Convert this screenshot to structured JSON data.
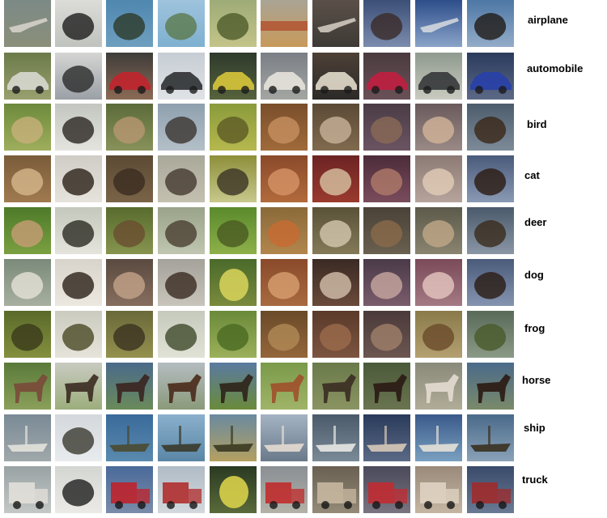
{
  "labels": [
    "airplane",
    "automobile",
    "bird",
    "cat",
    "deer",
    "dog",
    "frog",
    "horse",
    "ship",
    "truck"
  ],
  "images": [
    [
      {
        "bg": [
          "#7c8a86",
          "#8b8f7a"
        ],
        "fg": "#d9d5cc",
        "shape": "plane"
      },
      {
        "bg": [
          "#dcdcd8",
          "#bfc3bd"
        ],
        "fg": "#1d1d1d",
        "shape": "blob"
      },
      {
        "bg": [
          "#4f87b0",
          "#6f9fbf"
        ],
        "fg": "#2c3a28",
        "shape": "blob"
      },
      {
        "bg": [
          "#9ec3dd",
          "#7fb0d0"
        ],
        "fg": "#5b7a4c",
        "shape": "blob"
      },
      {
        "bg": [
          "#9eab77",
          "#c3c489"
        ],
        "fg": "#4e5b2a",
        "shape": "blob"
      },
      {
        "bg": [
          "#a9a495",
          "#c89a5b"
        ],
        "fg": "#b24a2a",
        "shape": "stripe"
      },
      {
        "bg": [
          "#5a5049",
          "#3e3a35"
        ],
        "fg": "#d7d0c5",
        "shape": "plane"
      },
      {
        "bg": [
          "#3c4f77",
          "#7b8cad"
        ],
        "fg": "#3a2a28",
        "shape": "blob"
      },
      {
        "bg": [
          "#2d4e8a",
          "#8aa3c9"
        ],
        "fg": "#d8dce0",
        "shape": "plane"
      },
      {
        "bg": [
          "#4d77a5",
          "#93acc8"
        ],
        "fg": "#1f1a17",
        "shape": "blob"
      }
    ],
    [
      {
        "bg": [
          "#6b7a4a",
          "#9aa06f"
        ],
        "fg": "#d8d8d0",
        "shape": "car"
      },
      {
        "bg": [
          "#d5d5d3",
          "#9aa0a6"
        ],
        "fg": "#2a2a2a",
        "shape": "blob"
      },
      {
        "bg": [
          "#3f3d3a",
          "#8b6a55"
        ],
        "fg": "#c1232c",
        "shape": "car"
      },
      {
        "bg": [
          "#c6cdd4",
          "#e0e3e6"
        ],
        "fg": "#2e3033",
        "shape": "car"
      },
      {
        "bg": [
          "#2e3a2c",
          "#57633c"
        ],
        "fg": "#d7c53a",
        "shape": "car"
      },
      {
        "bg": [
          "#7a7f86",
          "#a4a6a2"
        ],
        "fg": "#e5e3dc",
        "shape": "car"
      },
      {
        "bg": [
          "#4d4036",
          "#2c2a28"
        ],
        "fg": "#e2dccb",
        "shape": "car"
      },
      {
        "bg": [
          "#4a3b3f",
          "#6a5158"
        ],
        "fg": "#c01e3f",
        "shape": "car"
      },
      {
        "bg": [
          "#8f9a8e",
          "#c9cbc0"
        ],
        "fg": "#35373a",
        "shape": "car"
      },
      {
        "bg": [
          "#2b3b5c",
          "#5c6986"
        ],
        "fg": "#2840a8",
        "shape": "car"
      }
    ],
    [
      {
        "bg": [
          "#6d8a3c",
          "#9eae5c"
        ],
        "fg": "#c8b07a",
        "shape": "blob"
      },
      {
        "bg": [
          "#c3c6c0",
          "#e4e4de"
        ],
        "fg": "#2a2621",
        "shape": "blob"
      },
      {
        "bg": [
          "#5b6b3a",
          "#88925a"
        ],
        "fg": "#b89672",
        "shape": "blob"
      },
      {
        "bg": [
          "#8ea0ae",
          "#b4c0c8"
        ],
        "fg": "#3b3431",
        "shape": "blob"
      },
      {
        "bg": [
          "#8a9b3b",
          "#b6b84e"
        ],
        "fg": "#5d5a26",
        "shape": "blob"
      },
      {
        "bg": [
          "#7a4f2c",
          "#a06a3a"
        ],
        "fg": "#c79060",
        "shape": "blob"
      },
      {
        "bg": [
          "#5b4a36",
          "#806a4e"
        ],
        "fg": "#c8b39a",
        "shape": "blob"
      },
      {
        "bg": [
          "#4a3c45",
          "#6b5462"
        ],
        "fg": "#8a6a56",
        "shape": "blob"
      },
      {
        "bg": [
          "#6b5a5c",
          "#9a8a86"
        ],
        "fg": "#d2b49a",
        "shape": "blob"
      },
      {
        "bg": [
          "#4d5c6c",
          "#7d8b99"
        ],
        "fg": "#3a2718",
        "shape": "blob"
      }
    ],
    [
      {
        "bg": [
          "#7a5c3a",
          "#a07a50"
        ],
        "fg": "#d6b88c",
        "shape": "blob"
      },
      {
        "bg": [
          "#d0cdc6",
          "#e6e3dc"
        ],
        "fg": "#2a2018",
        "shape": "blob"
      },
      {
        "bg": [
          "#5c4a34",
          "#7a6448"
        ],
        "fg": "#3b2c20",
        "shape": "blob"
      },
      {
        "bg": [
          "#a9a99a",
          "#c4c0b0"
        ],
        "fg": "#453a30",
        "shape": "blob"
      },
      {
        "bg": [
          "#8d8f3a",
          "#c8c88c"
        ],
        "fg": "#3a3324",
        "shape": "blob"
      },
      {
        "bg": [
          "#8a4a2a",
          "#b26a3c"
        ],
        "fg": "#d69466",
        "shape": "blob"
      },
      {
        "bg": [
          "#6c2424",
          "#9a3a2e"
        ],
        "fg": "#d8c4a4",
        "shape": "blob"
      },
      {
        "bg": [
          "#4c2c3a",
          "#7a4c5c"
        ],
        "fg": "#b07a6a",
        "shape": "blob"
      },
      {
        "bg": [
          "#8c7a74",
          "#b6a49c"
        ],
        "fg": "#e2cdb8",
        "shape": "blob"
      },
      {
        "bg": [
          "#4a5a7a",
          "#8a9ab4"
        ],
        "fg": "#2a1a10",
        "shape": "blob"
      }
    ],
    [
      {
        "bg": [
          "#4e7a2a",
          "#7aa040"
        ],
        "fg": "#c89c76",
        "shape": "blob"
      },
      {
        "bg": [
          "#c4c8bc",
          "#e4e4dc"
        ],
        "fg": "#2a2a22",
        "shape": "blob"
      },
      {
        "bg": [
          "#586c2e",
          "#86944e"
        ],
        "fg": "#6a4e30",
        "shape": "blob"
      },
      {
        "bg": [
          "#9aa48a",
          "#c0c6b0"
        ],
        "fg": "#4a3e32",
        "shape": "blob"
      },
      {
        "bg": [
          "#5a8a2c",
          "#8eb04a"
        ],
        "fg": "#4a5a22",
        "shape": "blob"
      },
      {
        "bg": [
          "#8a6a3a",
          "#b2864c"
        ],
        "fg": "#c86a32",
        "shape": "blob"
      },
      {
        "bg": [
          "#5a5238",
          "#847a58"
        ],
        "fg": "#d4c8b0",
        "shape": "blob"
      },
      {
        "bg": [
          "#4a4238",
          "#6a6050"
        ],
        "fg": "#8a6a4a",
        "shape": "blob"
      },
      {
        "bg": [
          "#5c5a4a",
          "#8a8470"
        ],
        "fg": "#c0a888",
        "shape": "blob"
      },
      {
        "bg": [
          "#4a5a6c",
          "#8a96a4"
        ],
        "fg": "#3a2a1c",
        "shape": "blob"
      }
    ],
    [
      {
        "bg": [
          "#7a8a7a",
          "#a8b0a0"
        ],
        "fg": "#e6e2d8",
        "shape": "blob"
      },
      {
        "bg": [
          "#d8d4cc",
          "#ece8e0"
        ],
        "fg": "#2a2018",
        "shape": "blob"
      },
      {
        "bg": [
          "#5a4a40",
          "#866e5e"
        ],
        "fg": "#c4a48a",
        "shape": "blob"
      },
      {
        "bg": [
          "#a4a29a",
          "#c8c4bc"
        ],
        "fg": "#3a2a20",
        "shape": "blob"
      },
      {
        "bg": [
          "#4a6a2a",
          "#7a8a3c"
        ],
        "fg": "#d4d05a",
        "shape": "disc"
      },
      {
        "bg": [
          "#8a4a2a",
          "#a86a40"
        ],
        "fg": "#d8a070",
        "shape": "blob"
      },
      {
        "bg": [
          "#3a2a24",
          "#6a4a3a"
        ],
        "fg": "#d4c0ac",
        "shape": "blob"
      },
      {
        "bg": [
          "#4a3a48",
          "#7a5c6c"
        ],
        "fg": "#c8a8a0",
        "shape": "blob"
      },
      {
        "bg": [
          "#7a4a58",
          "#a47a84"
        ],
        "fg": "#e6c8c0",
        "shape": "blob"
      },
      {
        "bg": [
          "#4a5a7a",
          "#8494b0"
        ],
        "fg": "#2a1c14",
        "shape": "blob"
      }
    ],
    [
      {
        "bg": [
          "#5a6a2a",
          "#84903e"
        ],
        "fg": "#3a3a1a",
        "shape": "blob"
      },
      {
        "bg": [
          "#cccbc0",
          "#e6e4da"
        ],
        "fg": "#4a4a26",
        "shape": "blob"
      },
      {
        "bg": [
          "#6a6a3a",
          "#94904e"
        ],
        "fg": "#3a3220",
        "shape": "blob"
      },
      {
        "bg": [
          "#c6cabc",
          "#e0e2d6"
        ],
        "fg": "#3e4a2a",
        "shape": "blob"
      },
      {
        "bg": [
          "#6a8a3a",
          "#9cb05a"
        ],
        "fg": "#4a6a22",
        "shape": "blob"
      },
      {
        "bg": [
          "#6a4a2a",
          "#94663a"
        ],
        "fg": "#b08a56",
        "shape": "blob"
      },
      {
        "bg": [
          "#5a3a2a",
          "#7c5440"
        ],
        "fg": "#9c6c4c",
        "shape": "blob"
      },
      {
        "bg": [
          "#4a3a3a",
          "#6c5650"
        ],
        "fg": "#a0806a",
        "shape": "blob"
      },
      {
        "bg": [
          "#8a7a4a",
          "#b4a070"
        ],
        "fg": "#6a4a2a",
        "shape": "blob"
      },
      {
        "bg": [
          "#5a6a5a",
          "#8a9a86"
        ],
        "fg": "#4a5a2a",
        "shape": "blob"
      }
    ],
    [
      {
        "bg": [
          "#5a7a3a",
          "#8aa05a"
        ],
        "fg": "#7a4a3a",
        "shape": "horse"
      },
      {
        "bg": [
          "#c8cac0",
          "#9cae7c"
        ],
        "fg": "#3a2a20",
        "shape": "horse"
      },
      {
        "bg": [
          "#4a6a8a",
          "#6a8a5a"
        ],
        "fg": "#3a2420",
        "shape": "horse"
      },
      {
        "bg": [
          "#b4bcc0",
          "#8a9a7a"
        ],
        "fg": "#4a2a1a",
        "shape": "horse"
      },
      {
        "bg": [
          "#5a7aa0",
          "#6a8a3a"
        ],
        "fg": "#2e2218",
        "shape": "horse"
      },
      {
        "bg": [
          "#7a9a4a",
          "#a0b468"
        ],
        "fg": "#a0502c",
        "shape": "horse"
      },
      {
        "bg": [
          "#6a7a4a",
          "#8a9462"
        ],
        "fg": "#3a2c22",
        "shape": "horse"
      },
      {
        "bg": [
          "#4a5a3a",
          "#6a7450"
        ],
        "fg": "#2a1a14",
        "shape": "horse"
      },
      {
        "bg": [
          "#8a8a7a",
          "#b0ac98"
        ],
        "fg": "#e4dcd0",
        "shape": "horse"
      },
      {
        "bg": [
          "#4a6a8a",
          "#7a8a6a"
        ],
        "fg": "#2a1a12",
        "shape": "horse"
      }
    ],
    [
      {
        "bg": [
          "#7a8a96",
          "#a0a8aa"
        ],
        "fg": "#e2e2dc",
        "shape": "ship"
      },
      {
        "bg": [
          "#d4d8dc",
          "#e8ecee"
        ],
        "fg": "#3a3a30",
        "shape": "blob"
      },
      {
        "bg": [
          "#3a6a9a",
          "#5a8aae"
        ],
        "fg": "#4a4a30",
        "shape": "ship"
      },
      {
        "bg": [
          "#8ab0cc",
          "#5a86a6"
        ],
        "fg": "#3a3a2a",
        "shape": "ship"
      },
      {
        "bg": [
          "#6a8aa0",
          "#b4a060"
        ],
        "fg": "#3a3a22",
        "shape": "ship"
      },
      {
        "bg": [
          "#a4b4c4",
          "#6a7a8a"
        ],
        "fg": "#e4dcd2",
        "shape": "ship"
      },
      {
        "bg": [
          "#4a5a6a",
          "#7a8a96"
        ],
        "fg": "#e8e8e4",
        "shape": "ship"
      },
      {
        "bg": [
          "#2a3a5a",
          "#5a6a86"
        ],
        "fg": "#d8c8b8",
        "shape": "ship"
      },
      {
        "bg": [
          "#3a5a8a",
          "#7aa0c0"
        ],
        "fg": "#e4e0d8",
        "shape": "ship"
      },
      {
        "bg": [
          "#4a6a8a",
          "#8aa2b8"
        ],
        "fg": "#3a3020",
        "shape": "ship"
      }
    ],
    [
      {
        "bg": [
          "#9aa2a4",
          "#c4c8c6"
        ],
        "fg": "#e4e0da",
        "shape": "truck"
      },
      {
        "bg": [
          "#d4d6d2",
          "#eceae6"
        ],
        "fg": "#1e1e1e",
        "shape": "blob"
      },
      {
        "bg": [
          "#4a6a9a",
          "#7a8ca8"
        ],
        "fg": "#c02028",
        "shape": "truck"
      },
      {
        "bg": [
          "#b0bcc6",
          "#d2d8dc"
        ],
        "fg": "#b02a2a",
        "shape": "truck"
      },
      {
        "bg": [
          "#2a3a22",
          "#5a6a3a"
        ],
        "fg": "#d8d04a",
        "shape": "disc"
      },
      {
        "bg": [
          "#8a8f94",
          "#b4b2a8"
        ],
        "fg": "#c02a2a",
        "shape": "truck"
      },
      {
        "bg": [
          "#6a6052",
          "#948a78"
        ],
        "fg": "#c8b8a0",
        "shape": "truck"
      },
      {
        "bg": [
          "#4a4a5a",
          "#7a7480"
        ],
        "fg": "#c42a30",
        "shape": "truck"
      },
      {
        "bg": [
          "#9a8a7a",
          "#c4b6a2"
        ],
        "fg": "#e0d4c4",
        "shape": "truck"
      },
      {
        "bg": [
          "#3a4a6a",
          "#6a7a94"
        ],
        "fg": "#a02a2a",
        "shape": "truck"
      }
    ]
  ]
}
